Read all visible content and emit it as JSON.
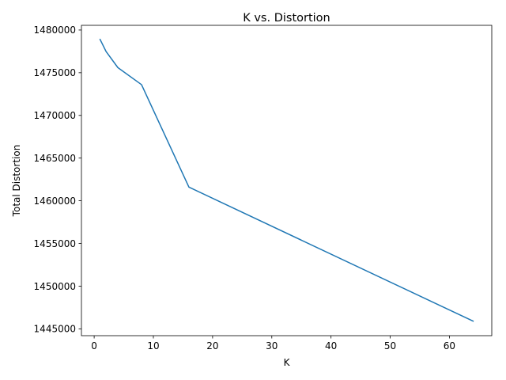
{
  "chart_data": {
    "type": "line",
    "title": "K vs. Distortion",
    "xlabel": "K",
    "ylabel": "Total Distortion",
    "xlim": [
      -2.15,
      67.15
    ],
    "ylim": [
      1444200,
      1480550
    ],
    "xticks": [
      0,
      10,
      20,
      30,
      40,
      50,
      60
    ],
    "xtick_labels": [
      "0",
      "10",
      "20",
      "30",
      "40",
      "50",
      "60"
    ],
    "yticks": [
      1445000,
      1450000,
      1455000,
      1460000,
      1465000,
      1470000,
      1475000,
      1480000
    ],
    "ytick_labels": [
      "1445000",
      "1450000",
      "1455000",
      "1460000",
      "1465000",
      "1470000",
      "1475000",
      "1480000"
    ],
    "grid": false,
    "legend": "none",
    "series": [
      {
        "color": "#1f77b4",
        "x": [
          1,
          2,
          4,
          8,
          16,
          64
        ],
        "y": [
          1478900,
          1477500,
          1475600,
          1473600,
          1461600,
          1445900
        ]
      }
    ]
  }
}
